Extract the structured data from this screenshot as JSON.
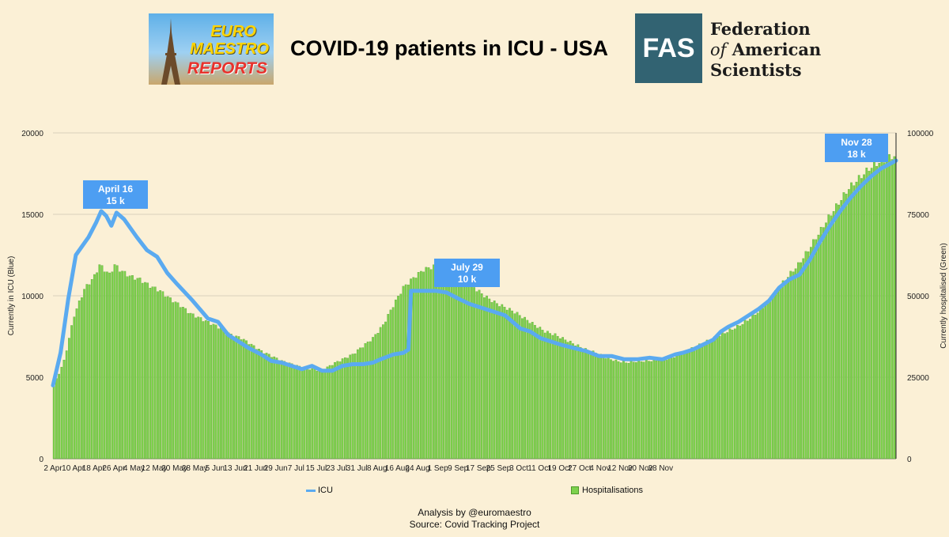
{
  "header": {
    "title": "COVID-19 patients in ICU - USA",
    "logo_left": {
      "line1": "EURO",
      "line2": "MAESTRO",
      "line3": "REPORTS"
    },
    "logo_right": {
      "abbr": "FAS",
      "name_line1": "Federation",
      "name_of": "of",
      "name_line2": "American",
      "name_line3": "Scientists"
    }
  },
  "colors": {
    "icu": "#5aaaf0",
    "hosp": "#7dd14c",
    "hosp_edge": "#4e9a2a",
    "callout": "#4d9ef2",
    "grid": "#d9d0bc"
  },
  "chart_data": {
    "type": "bar+line",
    "x_start": "2020-04-02",
    "x_end": "2020-11-30",
    "categories": [
      "2 Apr",
      "10 Apr",
      "18 Apr",
      "26 Apr",
      "4 May",
      "12 May",
      "20 May",
      "28 May",
      "5 Jun",
      "13 Jun",
      "21 Jun",
      "29 Jun",
      "7 Jul",
      "15 Jul",
      "23 Jul",
      "31 Jul",
      "8 Aug",
      "16 Aug",
      "24 Aug",
      "1 Sep",
      "9 Sep",
      "17 Sep",
      "25 Sep",
      "3 Oct",
      "11 Oct",
      "19 Oct",
      "27 Oct",
      "4 Nov",
      "12 Nov",
      "20 Nov",
      "28 Nov"
    ],
    "y_left": {
      "label": "Currently in ICU (Blue)",
      "ylim": [
        0,
        20000
      ],
      "ticks": [
        0,
        5000,
        10000,
        15000,
        20000
      ]
    },
    "y_right": {
      "label": "Currently hospitalised (Green)",
      "ylim": [
        0,
        100000
      ],
      "ticks": [
        0,
        25000,
        50000,
        75000,
        100000
      ]
    },
    "series": [
      {
        "name": "ICU",
        "kind": "line",
        "axis": "left",
        "points": [
          [
            0,
            4500
          ],
          [
            3,
            6500
          ],
          [
            6,
            9800
          ],
          [
            9,
            12500
          ],
          [
            14,
            13600
          ],
          [
            17,
            14500
          ],
          [
            19,
            15200
          ],
          [
            21,
            14900
          ],
          [
            23,
            14300
          ],
          [
            25,
            15100
          ],
          [
            28,
            14700
          ],
          [
            33,
            13600
          ],
          [
            37,
            12800
          ],
          [
            41,
            12400
          ],
          [
            45,
            11400
          ],
          [
            49,
            10700
          ],
          [
            55,
            9700
          ],
          [
            61,
            8600
          ],
          [
            65,
            8400
          ],
          [
            69,
            7600
          ],
          [
            73,
            7200
          ],
          [
            77,
            6800
          ],
          [
            82,
            6400
          ],
          [
            86,
            6000
          ],
          [
            90,
            5900
          ],
          [
            94,
            5700
          ],
          [
            98,
            5500
          ],
          [
            102,
            5700
          ],
          [
            106,
            5400
          ],
          [
            110,
            5400
          ],
          [
            114,
            5700
          ],
          [
            118,
            5800
          ],
          [
            122,
            5800
          ],
          [
            126,
            5900
          ],
          [
            129,
            6100
          ],
          [
            134,
            6400
          ],
          [
            138,
            6500
          ],
          [
            140,
            6700
          ],
          [
            141,
            10300
          ],
          [
            145,
            10300
          ],
          [
            151,
            10300
          ],
          [
            155,
            10200
          ],
          [
            160,
            9800
          ],
          [
            164,
            9500
          ],
          [
            168,
            9300
          ],
          [
            172,
            9100
          ],
          [
            178,
            8800
          ],
          [
            184,
            8000
          ],
          [
            188,
            7800
          ],
          [
            192,
            7400
          ],
          [
            196,
            7200
          ],
          [
            200,
            7000
          ],
          [
            205,
            6800
          ],
          [
            210,
            6600
          ],
          [
            215,
            6300
          ],
          [
            220,
            6300
          ],
          [
            225,
            6100
          ],
          [
            230,
            6100
          ],
          [
            235,
            6200
          ],
          [
            240,
            6100
          ],
          [
            245,
            6400
          ],
          [
            248,
            6500
          ],
          [
            252,
            6700
          ],
          [
            256,
            7000
          ],
          [
            260,
            7300
          ],
          [
            263,
            7800
          ],
          [
            266,
            8100
          ],
          [
            270,
            8400
          ],
          [
            274,
            8800
          ],
          [
            278,
            9200
          ],
          [
            282,
            9700
          ],
          [
            286,
            10500
          ],
          [
            290,
            11000
          ],
          [
            294,
            11300
          ],
          [
            298,
            12200
          ],
          [
            302,
            13300
          ],
          [
            306,
            14300
          ],
          [
            310,
            15200
          ],
          [
            314,
            16000
          ],
          [
            318,
            16700
          ],
          [
            322,
            17300
          ],
          [
            326,
            17800
          ],
          [
            332,
            18300
          ]
        ]
      },
      {
        "name": "Hospitalisations",
        "kind": "bar",
        "axis": "right",
        "points": [
          [
            0,
            22500
          ],
          [
            4,
            30000
          ],
          [
            8,
            44000
          ],
          [
            12,
            52000
          ],
          [
            16,
            56000
          ],
          [
            18,
            59500
          ],
          [
            20,
            58000
          ],
          [
            22,
            56500
          ],
          [
            24,
            59500
          ],
          [
            26,
            58000
          ],
          [
            30,
            56000
          ],
          [
            34,
            55000
          ],
          [
            38,
            53000
          ],
          [
            42,
            51500
          ],
          [
            46,
            49000
          ],
          [
            50,
            47000
          ],
          [
            54,
            44500
          ],
          [
            58,
            43000
          ],
          [
            62,
            41500
          ],
          [
            66,
            40000
          ],
          [
            70,
            38000
          ],
          [
            74,
            37000
          ],
          [
            78,
            35000
          ],
          [
            82,
            33000
          ],
          [
            86,
            31500
          ],
          [
            90,
            30000
          ],
          [
            94,
            29000
          ],
          [
            98,
            28000
          ],
          [
            102,
            27500
          ],
          [
            106,
            27000
          ],
          [
            110,
            29000
          ],
          [
            114,
            30500
          ],
          [
            118,
            32000
          ],
          [
            122,
            34500
          ],
          [
            126,
            37000
          ],
          [
            130,
            41000
          ],
          [
            134,
            47000
          ],
          [
            138,
            52500
          ],
          [
            142,
            55500
          ],
          [
            146,
            58000
          ],
          [
            150,
            59000
          ],
          [
            154,
            57000
          ],
          [
            158,
            56000
          ],
          [
            162,
            54500
          ],
          [
            166,
            52500
          ],
          [
            170,
            50000
          ],
          [
            174,
            48000
          ],
          [
            178,
            46500
          ],
          [
            182,
            45000
          ],
          [
            186,
            43000
          ],
          [
            190,
            41000
          ],
          [
            194,
            39000
          ],
          [
            198,
            38000
          ],
          [
            202,
            36500
          ],
          [
            206,
            35000
          ],
          [
            210,
            33500
          ],
          [
            214,
            32500
          ],
          [
            218,
            31000
          ],
          [
            222,
            30000
          ],
          [
            226,
            29500
          ],
          [
            230,
            29800
          ],
          [
            234,
            30000
          ],
          [
            238,
            30200
          ],
          [
            242,
            30500
          ],
          [
            246,
            31500
          ],
          [
            250,
            33000
          ],
          [
            254,
            34500
          ],
          [
            258,
            36000
          ],
          [
            262,
            37500
          ],
          [
            266,
            39000
          ],
          [
            270,
            40500
          ],
          [
            274,
            42500
          ],
          [
            278,
            45000
          ],
          [
            282,
            48000
          ],
          [
            286,
            52000
          ],
          [
            290,
            56000
          ],
          [
            294,
            59500
          ],
          [
            298,
            64000
          ],
          [
            302,
            69000
          ],
          [
            306,
            74000
          ],
          [
            310,
            78500
          ],
          [
            314,
            83000
          ],
          [
            318,
            86000
          ],
          [
            322,
            89000
          ],
          [
            326,
            91000
          ],
          [
            332,
            93000
          ]
        ]
      }
    ],
    "callouts": [
      {
        "label": "April 16",
        "value": "15 k"
      },
      {
        "label": "July 29",
        "value": "10 k"
      },
      {
        "label": "Nov 28",
        "value": "18 k"
      }
    ],
    "legend": {
      "icu": "ICU",
      "hosp": "Hospitalisations",
      "position": "bottom"
    }
  },
  "footer": {
    "analysis": "Analysis by @euromaestro",
    "source": "Source: Covid Tracking Project"
  }
}
